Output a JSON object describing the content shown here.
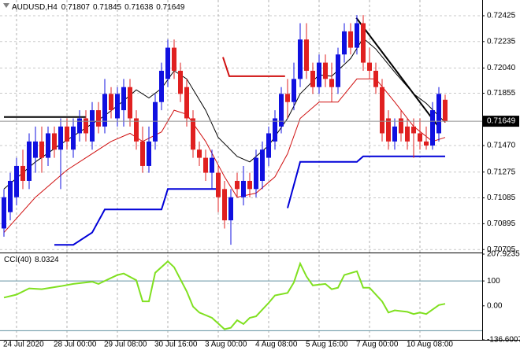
{
  "chart_data": [
    {
      "type": "candlestick",
      "title": "AUDUSD,H4",
      "categories": [
        null,
        null,
        "24 Jul 2020",
        null,
        null,
        null,
        null,
        null,
        null,
        null,
        "28 Jul 00:00",
        null,
        null,
        null,
        null,
        null,
        null,
        null,
        "29 Jul 08:00",
        null,
        null,
        null,
        null,
        null,
        null,
        null,
        "30 Jul 16:00",
        null,
        null,
        null,
        null,
        null,
        null,
        null,
        "3 Aug 00:00",
        null,
        null,
        null,
        null,
        null,
        null,
        null,
        "4 Aug 08:00",
        null,
        null,
        null,
        null,
        null,
        null,
        null,
        "5 Aug 16:00",
        null,
        null,
        null,
        null,
        null,
        null,
        null,
        "7 Aug 00:00",
        null,
        null,
        null,
        null,
        null,
        null,
        null,
        "10 Aug 08:00",
        null,
        null,
        null,
        null
      ],
      "open": [
        0.7086,
        0.7098,
        0.7109,
        0.7132,
        0.7121,
        0.7138,
        0.715,
        0.7138,
        0.7156,
        0.7144,
        0.7161,
        0.7144,
        0.7156,
        0.7167,
        0.715,
        0.7173,
        0.7161,
        0.7185,
        0.7167,
        0.7173,
        0.719,
        0.7167,
        0.715,
        0.7132,
        0.715,
        0.7179,
        0.7196,
        0.7219,
        0.7202,
        0.719,
        0.7167,
        0.7144,
        0.7138,
        0.7127,
        0.7127,
        0.7115,
        0.7092,
        0.7121,
        0.7109,
        0.7121,
        0.7115,
        0.7121,
        0.7138,
        0.715,
        0.7161,
        0.7185,
        0.7179,
        0.7196,
        0.7225,
        0.7202,
        0.719,
        0.7208,
        0.7196,
        0.719,
        0.7214,
        0.7231,
        0.7219,
        0.7237,
        0.7208,
        0.7202,
        0.719,
        0.7167,
        0.715,
        0.7167,
        0.7161,
        0.7161,
        0.7156,
        0.715,
        0.7147,
        0.7156,
        0.71807
      ],
      "high": [
        0.7115,
        0.7127,
        0.7138,
        0.7144,
        0.7156,
        0.7161,
        0.7161,
        0.7161,
        0.7161,
        0.7167,
        0.7167,
        0.7167,
        0.7173,
        0.7173,
        0.7179,
        0.7179,
        0.7196,
        0.719,
        0.719,
        0.7196,
        0.7196,
        0.7173,
        0.7161,
        0.7161,
        0.7185,
        0.7208,
        0.7225,
        0.7225,
        0.7208,
        0.7196,
        0.7173,
        0.715,
        0.7144,
        0.7144,
        0.7132,
        0.7121,
        0.7115,
        0.7127,
        0.7132,
        0.7127,
        0.7144,
        0.715,
        0.7161,
        0.7173,
        0.719,
        0.7196,
        0.7208,
        0.7237,
        0.7237,
        0.7208,
        0.7214,
        0.7214,
        0.7208,
        0.7219,
        0.7237,
        0.7237,
        0.7243,
        0.7243,
        0.7219,
        0.7208,
        0.7196,
        0.7173,
        0.7167,
        0.7173,
        0.7167,
        0.7167,
        0.7167,
        0.7161,
        0.7179,
        0.719,
        0.71845
      ],
      "low": [
        0.708,
        0.7092,
        0.7103,
        0.7115,
        0.7115,
        0.7127,
        0.7127,
        0.7132,
        0.7138,
        0.7115,
        0.7144,
        0.7138,
        0.715,
        0.715,
        0.7144,
        0.7156,
        0.7156,
        0.7167,
        0.7161,
        0.7161,
        0.7161,
        0.7144,
        0.7127,
        0.7127,
        0.7144,
        0.7173,
        0.719,
        0.7196,
        0.7179,
        0.7161,
        0.7138,
        0.7132,
        0.7121,
        0.7115,
        0.7098,
        0.7086,
        0.7074,
        0.7109,
        0.7103,
        0.7109,
        0.7109,
        0.7115,
        0.7132,
        0.7144,
        0.7156,
        0.7167,
        0.7173,
        0.719,
        0.7196,
        0.7185,
        0.7185,
        0.719,
        0.7179,
        0.7185,
        0.7208,
        0.7214,
        0.7214,
        0.7202,
        0.7196,
        0.7185,
        0.715,
        0.7144,
        0.7144,
        0.715,
        0.7144,
        0.7138,
        0.7144,
        0.7144,
        0.7144,
        0.715,
        0.71638
      ],
      "close": [
        0.7109,
        0.7121,
        0.7132,
        0.7121,
        0.715,
        0.715,
        0.7138,
        0.7156,
        0.7144,
        0.7161,
        0.715,
        0.7161,
        0.7167,
        0.7156,
        0.7173,
        0.7161,
        0.7185,
        0.7173,
        0.7185,
        0.719,
        0.7167,
        0.715,
        0.7132,
        0.715,
        0.7179,
        0.7202,
        0.7219,
        0.7202,
        0.7185,
        0.7167,
        0.7144,
        0.7138,
        0.7127,
        0.7138,
        0.7109,
        0.7092,
        0.7109,
        0.7115,
        0.7121,
        0.7115,
        0.7138,
        0.7144,
        0.7156,
        0.7167,
        0.7185,
        0.7179,
        0.7196,
        0.7225,
        0.7202,
        0.719,
        0.7208,
        0.7196,
        0.719,
        0.7214,
        0.7231,
        0.7219,
        0.7237,
        0.7208,
        0.7202,
        0.719,
        0.7156,
        0.715,
        0.7161,
        0.7156,
        0.715,
        0.7156,
        0.715,
        0.7147,
        0.7173,
        0.7185,
        0.71649
      ],
      "up_color": "#1010e0",
      "down_color": "#e02020",
      "ylim": [
        0.70689,
        0.72529
      ],
      "yticks": [
        0.72425,
        0.72235,
        {
          "value": 0.7204,
          "label": "0.72040"
        },
        0.71855,
        {
          "value": 0.7147,
          "label": "0.71470"
        },
        0.71275,
        0.71085,
        0.70895,
        0.70705
      ],
      "grid": true,
      "series": [
        {
          "color": "#000000",
          "width": 1,
          "x": [
            0,
            5,
            9,
            12,
            16,
            19,
            21,
            23,
            25,
            27,
            29,
            32,
            34,
            37,
            39,
            42,
            45,
            47,
            50,
            52,
            55,
            57,
            59,
            62,
            65,
            67,
            70
          ],
          "values": [
            0.7115,
            0.7135,
            0.7148,
            0.7157,
            0.7169,
            0.718,
            0.7188,
            0.7182,
            0.7189,
            0.7202,
            0.7196,
            0.7173,
            0.7153,
            0.7139,
            0.7135,
            0.7147,
            0.7167,
            0.7185,
            0.7199,
            0.7198,
            0.7211,
            0.7226,
            0.7218,
            0.7201,
            0.7185,
            0.7178,
            0.7164
          ]
        },
        {
          "color": "#d01010",
          "width": 1,
          "x": [
            0,
            5,
            10,
            13,
            17,
            20,
            22,
            25,
            27,
            29,
            32,
            35,
            37,
            40,
            43,
            45,
            47,
            50,
            53,
            56,
            59,
            62,
            65,
            68,
            70
          ],
          "values": [
            0.7083,
            0.7109,
            0.7129,
            0.7138,
            0.715,
            0.7156,
            0.715,
            0.7157,
            0.7173,
            0.717,
            0.715,
            0.7124,
            0.7109,
            0.7112,
            0.7124,
            0.7141,
            0.7167,
            0.7179,
            0.7179,
            0.7196,
            0.7196,
            0.7179,
            0.7161,
            0.715,
            0.7153
          ]
        },
        {
          "color": "#0000d8",
          "width": 2,
          "x": [
            8,
            11,
            14,
            16,
            25,
            26,
            34,
            40,
            45,
            47,
            56,
            57,
            70
          ],
          "values": [
            0.7074,
            0.7074,
            0.7083,
            0.71,
            0.71,
            0.7115,
            0.7115,
            null,
            0.7101,
            0.7135,
            0.7135,
            0.7139,
            0.7139
          ]
        }
      ],
      "drawings": [
        {
          "color": "#000000",
          "width": 2,
          "x": [
            0,
            13
          ],
          "values": [
            0.7168,
            0.7168
          ]
        },
        {
          "color": "#d01010",
          "width": 2,
          "x": [
            34.75,
            35.75,
            44.6
          ],
          "values": [
            0.7212,
            0.7198,
            0.7198
          ]
        },
        {
          "color": "#000000",
          "width": 2,
          "x": [
            55.9,
            68.9
          ],
          "values": [
            0.7241,
            0.7161
          ]
        }
      ]
    },
    {
      "type": "line",
      "title": "CCI(40)",
      "ylim": [
        -136.6007,
        207.9235
      ],
      "yticks": [
        207.9235,
        100,
        {
          "value": 0,
          "label": "0.00"
        },
        -136.6007
      ],
      "levels": [
        100,
        -100
      ],
      "series": [
        {
          "color": "#80e020",
          "width": 2,
          "x": [
            0,
            2,
            4,
            6,
            9,
            11,
            14,
            15,
            17,
            18,
            19,
            21,
            22,
            23,
            24,
            26,
            27,
            29,
            30,
            31,
            33,
            35,
            36,
            37,
            38,
            39,
            40,
            42,
            43,
            45,
            46,
            47,
            48,
            49,
            51,
            52,
            53,
            54,
            56,
            57,
            58,
            60,
            61,
            62,
            64,
            65,
            66,
            67,
            69,
            70
          ],
          "values": [
            33,
            45,
            70,
            67,
            79,
            88,
            97,
            88,
            112,
            124,
            130,
            103,
            18,
            18,
            133,
            179,
            155,
            58,
            -3,
            -27,
            -48,
            -94,
            -88,
            -58,
            -73,
            -48,
            -42,
            12,
            42,
            52,
            94,
            170,
            118,
            82,
            88,
            67,
            73,
            124,
            139,
            73,
            73,
            18,
            -27,
            -18,
            -24,
            -33,
            -27,
            -33,
            3,
            8.0324
          ]
        }
      ]
    }
  ]
}
